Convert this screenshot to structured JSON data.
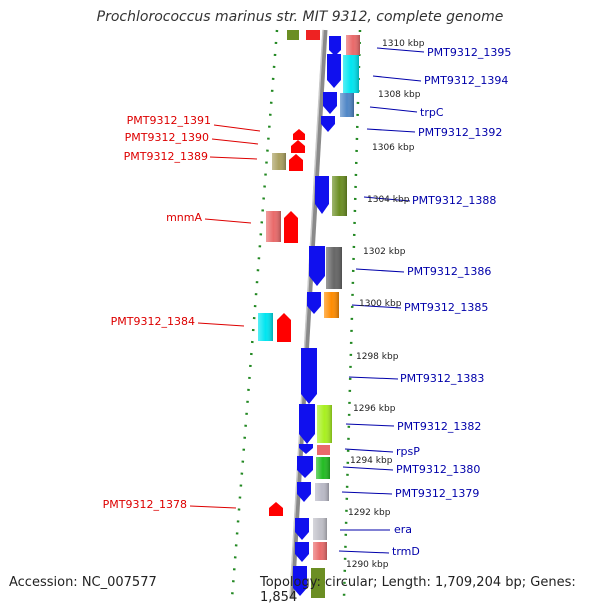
{
  "title": "Prochlorococcus marinus str. MIT 9312, complete genome",
  "footer": {
    "accession": "Accession: NC_007577",
    "topology": "Topology: circular; Length: 1,709,204 bp; Genes: 1,854"
  },
  "colors": {
    "left_label": "#dd0000",
    "right_label": "#0000aa",
    "backbone": "#8c8c8c",
    "ruler": "#228822"
  },
  "ticks": [
    "1310 kbp",
    "1308 kbp",
    "1306 kbp",
    "1304 kbp",
    "1302 kbp",
    "1300 kbp",
    "1298 kbp",
    "1296 kbp",
    "1294 kbp",
    "1292 kbp",
    "1290 kbp"
  ],
  "left_genes": [
    "PMT9312_1391",
    "PMT9312_1390",
    "PMT9312_1389",
    "mnmA",
    "PMT9312_1384",
    "PMT9312_1378"
  ],
  "right_genes": [
    "PMT9312_1395",
    "PMT9312_1394",
    "trpC",
    "PMT9312_1392",
    "PMT9312_1388",
    "PMT9312_1386",
    "PMT9312_1385",
    "PMT9312_1383",
    "PMT9312_1382",
    "rpsP",
    "PMT9312_1380",
    "PMT9312_1379",
    "era",
    "trmD"
  ]
}
